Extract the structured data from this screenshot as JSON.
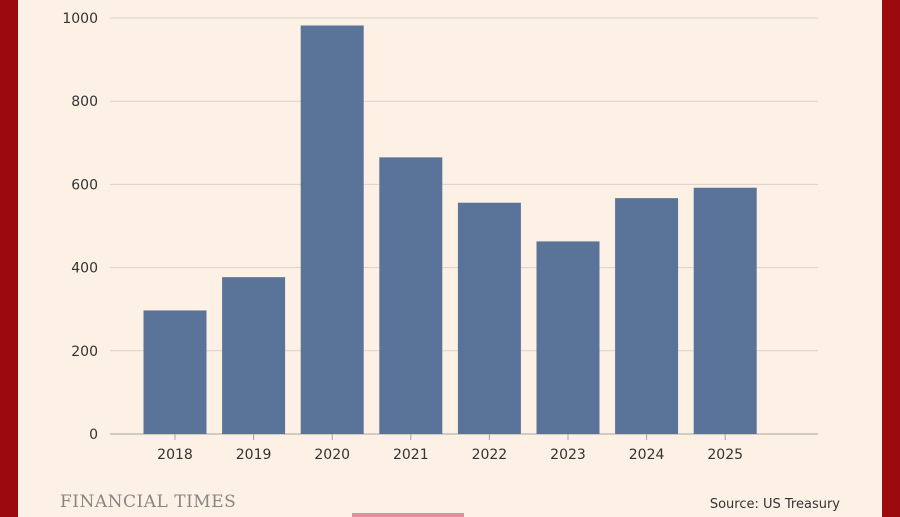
{
  "chart_data": {
    "type": "bar",
    "categories": [
      "2018",
      "2019",
      "2020",
      "2021",
      "2022",
      "2023",
      "2024",
      "2025"
    ],
    "values": [
      297,
      377,
      982,
      665,
      556,
      463,
      567,
      592
    ],
    "ylim": [
      0,
      1000
    ],
    "yticks": [
      0,
      200,
      400,
      600,
      800,
      1000
    ],
    "title": "",
    "xlabel": "",
    "ylabel": "",
    "grid": true,
    "bar_color": "#5a7399"
  },
  "footer": {
    "brand": "FINANCIAL TIMES",
    "source": "Source: US Treasury"
  },
  "colors": {
    "background": "#fdf1e6",
    "frame": "#9b0a0c",
    "gridline": "#d9d2ca",
    "axis_text": "#333333"
  }
}
